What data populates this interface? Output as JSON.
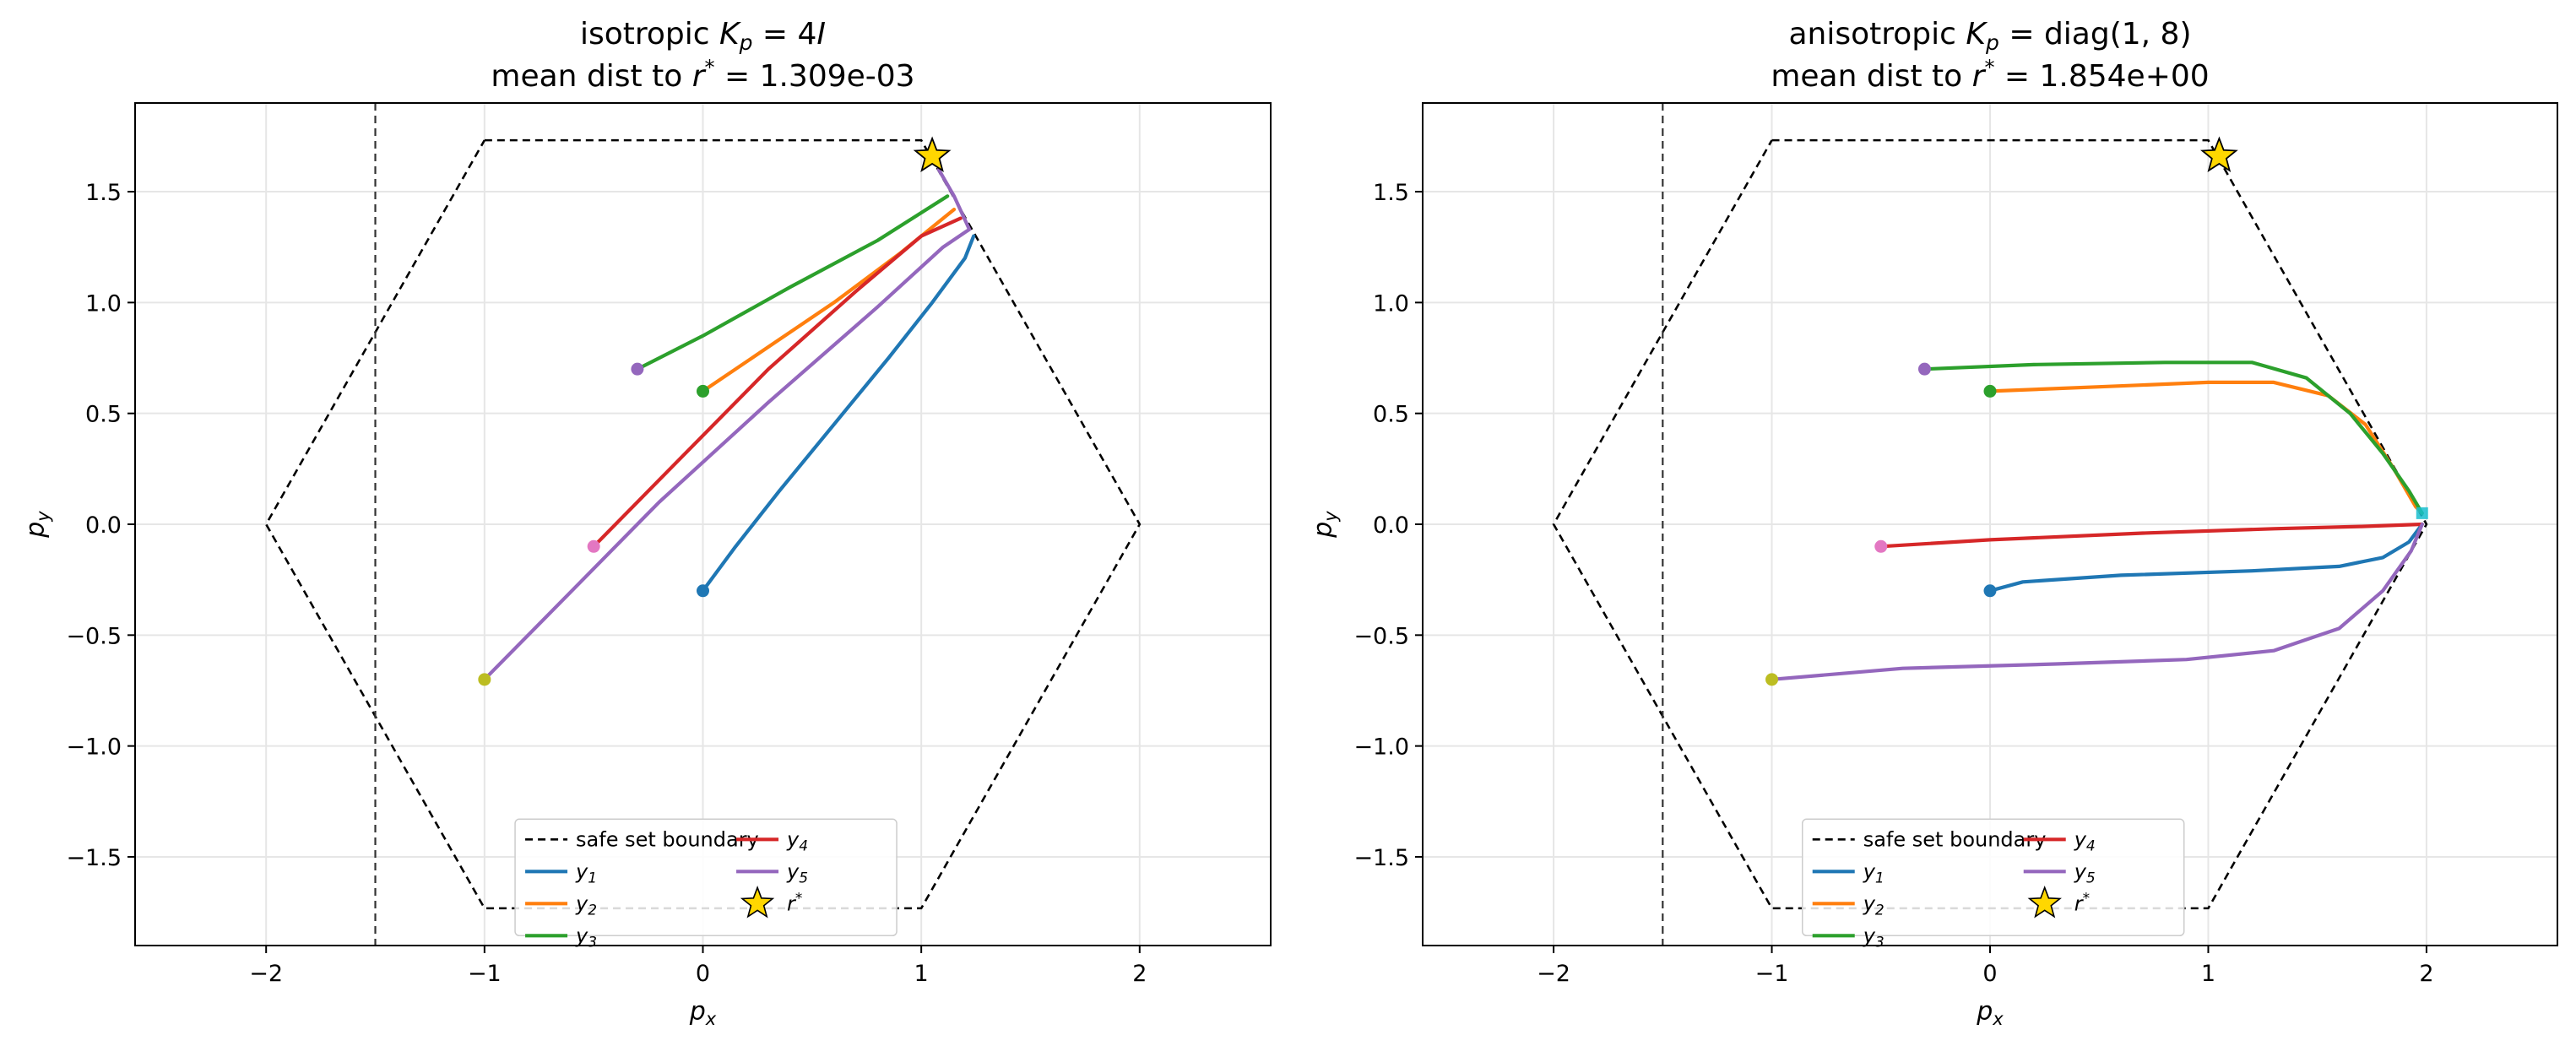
{
  "colors": {
    "y1": "#1f77b4",
    "y2": "#ff7f0e",
    "y3": "#2ca02c",
    "y4": "#d62728",
    "y5": "#9467bd",
    "boundary": "#000000",
    "star": "#ffd700",
    "grid": "#e6e6e6"
  },
  "chart_data": [
    {
      "type": "line",
      "title_line1_prefix": "isotropic ",
      "title_line1_math": "K_p = 4I",
      "title_line2_prefix": "mean dist to ",
      "title_line2_math": "r*",
      "title_line2_value": " = 1.309e-03",
      "xlabel": "p_x",
      "ylabel": "p_y",
      "xlim": [
        -2.6,
        2.6
      ],
      "ylim": [
        -1.9,
        1.9
      ],
      "xticks": [
        "−2",
        "−1",
        "0",
        "1",
        "2"
      ],
      "yticks": [
        "1.5",
        "1.0",
        "0.5",
        "0.0",
        "−0.5",
        "−1.0",
        "−1.5"
      ],
      "grid": true,
      "legend_location": "lower center",
      "safe_set_boundary": [
        [
          -1.0,
          1.732
        ],
        [
          1.0,
          1.732
        ],
        [
          2.0,
          0.0
        ],
        [
          1.0,
          -1.732
        ],
        [
          -1.0,
          -1.732
        ],
        [
          -2.0,
          0.0
        ],
        [
          -1.0,
          1.732
        ]
      ],
      "vertical_line_x": -1.5,
      "r_star": [
        1.05,
        1.66
      ],
      "series": [
        {
          "name": "y_1",
          "start": [
            0.0,
            -0.3
          ],
          "start_marker_color": "#1f77b4",
          "points": [
            [
              0.0,
              -0.3
            ],
            [
              0.15,
              -0.1
            ],
            [
              0.35,
              0.15
            ],
            [
              0.6,
              0.45
            ],
            [
              0.85,
              0.75
            ],
            [
              1.05,
              1.0
            ],
            [
              1.2,
              1.2
            ],
            [
              1.24,
              1.3
            ]
          ]
        },
        {
          "name": "y_2",
          "start": [
            0.0,
            0.6
          ],
          "start_marker_color": "#2ca02c",
          "points": [
            [
              0.0,
              0.6
            ],
            [
              0.3,
              0.8
            ],
            [
              0.6,
              1.0
            ],
            [
              0.9,
              1.22
            ],
            [
              1.15,
              1.42
            ]
          ]
        },
        {
          "name": "y_3",
          "start": [
            -0.3,
            0.7
          ],
          "start_marker_color": "#9467bd",
          "points": [
            [
              -0.3,
              0.7
            ],
            [
              0.0,
              0.85
            ],
            [
              0.4,
              1.07
            ],
            [
              0.8,
              1.28
            ],
            [
              1.12,
              1.48
            ]
          ]
        },
        {
          "name": "y_4",
          "start": [
            -0.5,
            -0.1
          ],
          "start_marker_color": "#e377c2",
          "points": [
            [
              -0.5,
              -0.1
            ],
            [
              -0.1,
              0.3
            ],
            [
              0.3,
              0.7
            ],
            [
              0.7,
              1.05
            ],
            [
              1.0,
              1.3
            ],
            [
              1.18,
              1.38
            ]
          ]
        },
        {
          "name": "y_5",
          "start": [
            -1.0,
            -0.7
          ],
          "start_marker_color": "#bcbd22",
          "points": [
            [
              -1.0,
              -0.7
            ],
            [
              -0.6,
              -0.3
            ],
            [
              -0.2,
              0.1
            ],
            [
              0.3,
              0.55
            ],
            [
              0.8,
              0.98
            ],
            [
              1.1,
              1.25
            ],
            [
              1.22,
              1.33
            ],
            [
              1.15,
              1.48
            ],
            [
              1.08,
              1.6
            ]
          ]
        }
      ]
    },
    {
      "type": "line",
      "title_line1_prefix": "anisotropic ",
      "title_line1_math": "K_p = diag(1, 8)",
      "title_line2_prefix": "mean dist to ",
      "title_line2_math": "r*",
      "title_line2_value": " = 1.854e+00",
      "xlabel": "p_x",
      "ylabel": "p_y",
      "xlim": [
        -2.6,
        2.6
      ],
      "ylim": [
        -1.9,
        1.9
      ],
      "xticks": [
        "−2",
        "−1",
        "0",
        "1",
        "2"
      ],
      "yticks": [
        "1.5",
        "1.0",
        "0.5",
        "0.0",
        "−0.5",
        "−1.0",
        "−1.5"
      ],
      "grid": true,
      "legend_location": "lower center",
      "safe_set_boundary": [
        [
          -1.0,
          1.732
        ],
        [
          1.0,
          1.732
        ],
        [
          2.0,
          0.0
        ],
        [
          1.0,
          -1.732
        ],
        [
          -1.0,
          -1.732
        ],
        [
          -2.0,
          0.0
        ],
        [
          -1.0,
          1.732
        ]
      ],
      "vertical_line_x": -1.5,
      "r_star": [
        1.05,
        1.66
      ],
      "end_marker": [
        1.98,
        0.05
      ],
      "series": [
        {
          "name": "y_1",
          "start": [
            0.0,
            -0.3
          ],
          "start_marker_color": "#1f77b4",
          "points": [
            [
              0.0,
              -0.3
            ],
            [
              0.15,
              -0.26
            ],
            [
              0.6,
              -0.23
            ],
            [
              1.2,
              -0.21
            ],
            [
              1.6,
              -0.19
            ],
            [
              1.8,
              -0.15
            ],
            [
              1.92,
              -0.08
            ],
            [
              1.98,
              0.0
            ]
          ]
        },
        {
          "name": "y_2",
          "start": [
            0.0,
            0.6
          ],
          "start_marker_color": "#2ca02c",
          "points": [
            [
              0.0,
              0.6
            ],
            [
              0.5,
              0.62
            ],
            [
              1.0,
              0.64
            ],
            [
              1.3,
              0.64
            ],
            [
              1.55,
              0.58
            ],
            [
              1.72,
              0.45
            ],
            [
              1.85,
              0.25
            ],
            [
              1.95,
              0.08
            ],
            [
              1.98,
              0.05
            ]
          ]
        },
        {
          "name": "y_3",
          "start": [
            -0.3,
            0.7
          ],
          "start_marker_color": "#9467bd",
          "points": [
            [
              -0.3,
              0.7
            ],
            [
              0.2,
              0.72
            ],
            [
              0.8,
              0.73
            ],
            [
              1.2,
              0.73
            ],
            [
              1.45,
              0.66
            ],
            [
              1.65,
              0.5
            ],
            [
              1.8,
              0.32
            ],
            [
              1.92,
              0.15
            ],
            [
              1.98,
              0.05
            ]
          ]
        },
        {
          "name": "y_4",
          "start": [
            -0.5,
            -0.1
          ],
          "start_marker_color": "#e377c2",
          "points": [
            [
              -0.5,
              -0.1
            ],
            [
              0.0,
              -0.07
            ],
            [
              0.7,
              -0.04
            ],
            [
              1.3,
              -0.02
            ],
            [
              1.7,
              -0.01
            ],
            [
              1.98,
              0.0
            ]
          ]
        },
        {
          "name": "y_5",
          "start": [
            -1.0,
            -0.7
          ],
          "start_marker_color": "#bcbd22",
          "points": [
            [
              -1.0,
              -0.7
            ],
            [
              -0.4,
              -0.65
            ],
            [
              0.3,
              -0.63
            ],
            [
              0.9,
              -0.61
            ],
            [
              1.3,
              -0.57
            ],
            [
              1.6,
              -0.47
            ],
            [
              1.8,
              -0.3
            ],
            [
              1.93,
              -0.12
            ],
            [
              1.98,
              0.0
            ]
          ]
        }
      ]
    }
  ],
  "legend": {
    "boundary_label": "safe set boundary",
    "series_labels": [
      "y",
      "y",
      "y",
      "y",
      "y"
    ],
    "series_subscripts": [
      "1",
      "2",
      "3",
      "4",
      "5"
    ],
    "star_label": "r",
    "star_superscript": "*"
  }
}
